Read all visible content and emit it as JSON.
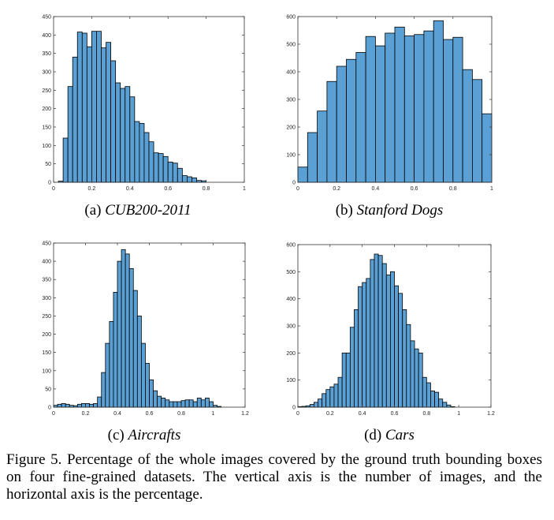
{
  "bar_color": "#5aa0d4",
  "bar_stroke": "#000000",
  "chart_data": [
    {
      "type": "bar",
      "caption_label": "(a)",
      "caption_name": "CUB200-2011",
      "xlim": [
        0,
        1
      ],
      "ylim": [
        0,
        450
      ],
      "xticks": [
        "0",
        "0.2",
        "0.4",
        "0.6",
        "0.8",
        "1"
      ],
      "xtick_values": [
        0,
        0.2,
        0.4,
        0.6,
        0.8,
        1
      ],
      "yticks": [
        "0",
        "50",
        "100",
        "150",
        "200",
        "250",
        "300",
        "350",
        "400",
        "450"
      ],
      "ytick_values": [
        0,
        50,
        100,
        150,
        200,
        250,
        300,
        350,
        400,
        450
      ],
      "bin_start": 0.0,
      "bin_width": 0.025,
      "values": [
        0,
        3,
        120,
        260,
        340,
        408,
        405,
        368,
        410,
        410,
        365,
        380,
        330,
        270,
        255,
        260,
        232,
        165,
        160,
        135,
        110,
        80,
        78,
        70,
        55,
        52,
        38,
        18,
        15,
        12,
        5,
        4
      ]
    },
    {
      "type": "bar",
      "caption_label": "(b)",
      "caption_name": "Stanford Dogs",
      "xlim": [
        0,
        1
      ],
      "ylim": [
        0,
        600
      ],
      "xticks": [
        "0",
        "0.2",
        "0.4",
        "0.6",
        "0.8",
        "1"
      ],
      "xtick_values": [
        0,
        0.2,
        0.4,
        0.6,
        0.8,
        1
      ],
      "yticks": [
        "0",
        "100",
        "200",
        "300",
        "400",
        "500",
        "600"
      ],
      "ytick_values": [
        0,
        100,
        200,
        300,
        400,
        500,
        600
      ],
      "bin_start": 0.0,
      "bin_width": 0.05,
      "values": [
        55,
        180,
        258,
        365,
        420,
        445,
        470,
        528,
        494,
        540,
        562,
        530,
        535,
        548,
        585,
        517,
        525,
        408,
        372,
        248
      ]
    },
    {
      "type": "bar",
      "caption_label": "(c)",
      "caption_name": "Aircrafts",
      "xlim": [
        0,
        1.2
      ],
      "ylim": [
        0,
        450
      ],
      "xticks": [
        "0",
        "0.2",
        "0.4",
        "0.6",
        "0.8",
        "1",
        "1.2"
      ],
      "xtick_values": [
        0,
        0.2,
        0.4,
        0.6,
        0.8,
        1,
        1.2
      ],
      "yticks": [
        "0",
        "50",
        "100",
        "150",
        "200",
        "250",
        "300",
        "350",
        "400",
        "450"
      ],
      "ytick_values": [
        0,
        50,
        100,
        150,
        200,
        250,
        300,
        350,
        400,
        450
      ],
      "bin_start": 0.0,
      "bin_width": 0.025,
      "values": [
        5,
        8,
        10,
        8,
        5,
        4,
        8,
        10,
        10,
        8,
        10,
        28,
        95,
        175,
        235,
        315,
        400,
        432,
        420,
        380,
        320,
        250,
        175,
        120,
        75,
        45,
        30,
        25,
        20,
        15,
        15,
        15,
        18,
        20,
        20,
        15,
        25,
        20,
        25,
        15,
        5,
        2
      ]
    },
    {
      "type": "bar",
      "caption_label": "(d)",
      "caption_name": "Cars",
      "xlim": [
        0,
        1.2
      ],
      "ylim": [
        0,
        600
      ],
      "xticks": [
        "0",
        "0.2",
        "0.4",
        "0.6",
        "0.8",
        "1",
        "1.2"
      ],
      "xtick_values": [
        0,
        0.2,
        0.4,
        0.6,
        0.8,
        1,
        1.2
      ],
      "yticks": [
        "0",
        "100",
        "200",
        "300",
        "400",
        "500",
        "600"
      ],
      "ytick_values": [
        0,
        100,
        200,
        300,
        400,
        500,
        600
      ],
      "bin_start": 0.0,
      "bin_width": 0.025,
      "values": [
        2,
        3,
        5,
        10,
        18,
        30,
        50,
        65,
        75,
        85,
        110,
        200,
        200,
        295,
        360,
        445,
        460,
        475,
        545,
        565,
        560,
        530,
        488,
        500,
        448,
        420,
        360,
        305,
        245,
        215,
        200,
        110,
        90,
        60,
        55,
        30,
        18,
        8,
        2
      ]
    }
  ],
  "figure_caption": "Figure 5.  Percentage of the whole images covered by the ground truth bounding boxes on four fine-grained datasets. The vertical axis is the number of images, and the horizontal axis is the percentage."
}
